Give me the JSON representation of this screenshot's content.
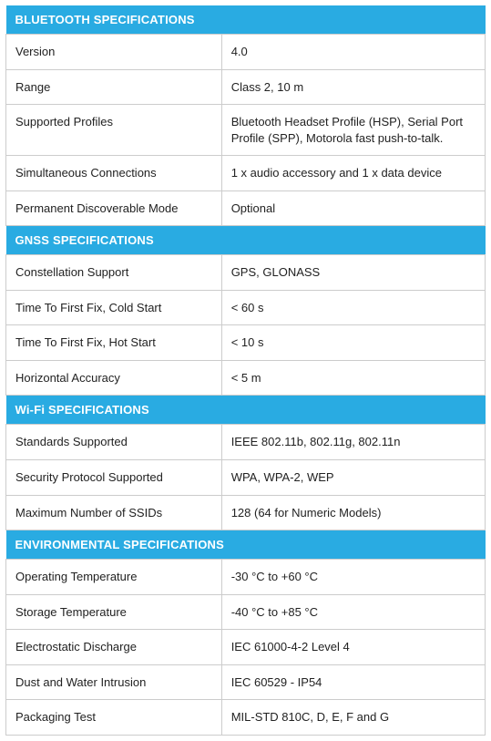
{
  "colors": {
    "header_bg": "#29abe2",
    "header_text": "#ffffff",
    "border": "#cccccc",
    "text": "#222222",
    "background": "#ffffff"
  },
  "typography": {
    "font_family": "Helvetica Neue, Helvetica, Arial, sans-serif",
    "header_fontsize": 13,
    "cell_fontsize": 13,
    "header_weight": "bold",
    "cell_weight": 300
  },
  "layout": {
    "label_width_pct": 45,
    "value_width_pct": 55,
    "cell_padding": "10px 10px",
    "header_padding": "8px 10px"
  },
  "sections": [
    {
      "title": "BLUETOOTH SPECIFICATIONS",
      "rows": [
        {
          "label": "Version",
          "value": "4.0"
        },
        {
          "label": "Range",
          "value": "Class 2, 10 m"
        },
        {
          "label": "Supported Profiles",
          "value": "Bluetooth Headset Profile (HSP), Serial Port Profile (SPP), Motorola fast push-to-talk."
        },
        {
          "label": "Simultaneous Connections",
          "value": "1 x audio accessory and 1 x data device"
        },
        {
          "label": "Permanent Discoverable Mode",
          "value": "Optional"
        }
      ]
    },
    {
      "title": "GNSS SPECIFICATIONS",
      "rows": [
        {
          "label": "Constellation Support",
          "value": "GPS, GLONASS"
        },
        {
          "label": "Time To First Fix, Cold Start",
          "value": "< 60 s"
        },
        {
          "label": "Time To First Fix, Hot Start",
          "value": "< 10 s"
        },
        {
          "label": "Horizontal Accuracy",
          "value": "<  5 m"
        }
      ]
    },
    {
      "title": "Wi-Fi SPECIFICATIONS",
      "rows": [
        {
          "label": "Standards Supported",
          "value": "IEEE 802.11b, 802.11g, 802.11n"
        },
        {
          "label": "Security Protocol Supported",
          "value": "WPA, WPA-2, WEP"
        },
        {
          "label": "Maximum Number of SSIDs",
          "value": "128 (64 for Numeric Models)"
        }
      ]
    },
    {
      "title": "ENVIRONMENTAL SPECIFICATIONS",
      "rows": [
        {
          "label": "Operating Temperature",
          "value": "-30 °C to +60 °C"
        },
        {
          "label": "Storage Temperature",
          "value": "-40 °C to +85 °C"
        },
        {
          "label": "Electrostatic Discharge",
          "value": "IEC 61000-4-2 Level 4"
        },
        {
          "label": "Dust and Water Intrusion",
          "value": "IEC 60529 - IP54"
        },
        {
          "label": "Packaging Test",
          "value": "MIL-STD 810C, D, E, F and G"
        }
      ]
    }
  ]
}
